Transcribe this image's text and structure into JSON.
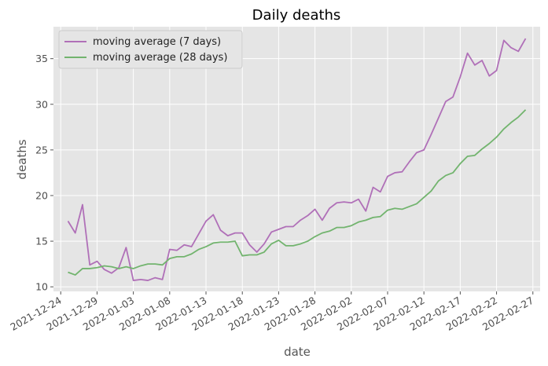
{
  "chart_data": {
    "type": "line",
    "title": "Daily deaths",
    "xlabel": "date",
    "ylabel": "deaths",
    "x_axis_type": "date",
    "xlim": [
      "2021-12-23",
      "2022-02-28"
    ],
    "ylim": [
      9.5,
      38.5
    ],
    "x_ticks": [
      "2021-12-24",
      "2021-12-29",
      "2022-01-03",
      "2022-01-08",
      "2022-01-13",
      "2022-01-18",
      "2022-01-23",
      "2022-01-28",
      "2022-02-02",
      "2022-02-07",
      "2022-02-12",
      "2022-02-17",
      "2022-02-22",
      "2022-02-27"
    ],
    "y_ticks": [
      10,
      15,
      20,
      25,
      30,
      35
    ],
    "grid": true,
    "legend_position": "top-left",
    "start_date": "2021-12-25",
    "series": [
      {
        "name": "moving average (7 days)",
        "color": "#b070b8",
        "values": [
          17.2,
          15.9,
          19.0,
          12.4,
          12.8,
          11.9,
          11.5,
          12.1,
          14.3,
          10.7,
          10.8,
          10.7,
          11.0,
          10.8,
          14.1,
          14.0,
          14.6,
          14.4,
          15.8,
          17.2,
          17.9,
          16.2,
          15.6,
          15.9,
          15.9,
          14.6,
          13.8,
          14.7,
          16.0,
          16.3,
          16.6,
          16.6,
          17.3,
          17.8,
          18.5,
          17.3,
          18.6,
          19.2,
          19.3,
          19.2,
          19.6,
          18.3,
          20.9,
          20.4,
          22.1,
          22.5,
          22.6,
          23.7,
          24.7,
          25.0,
          26.7,
          28.5,
          30.3,
          30.8,
          33.0,
          35.6,
          34.3,
          34.8,
          33.1,
          33.7,
          37.0,
          36.2,
          35.8,
          37.2
        ]
      },
      {
        "name": "moving average (28 days)",
        "color": "#72b46e",
        "values": [
          11.6,
          11.3,
          12.0,
          12.0,
          12.1,
          12.3,
          12.2,
          12.0,
          12.2,
          12.0,
          12.3,
          12.5,
          12.5,
          12.4,
          13.1,
          13.3,
          13.3,
          13.6,
          14.1,
          14.4,
          14.8,
          14.9,
          14.9,
          15.0,
          13.4,
          13.5,
          13.5,
          13.8,
          14.7,
          15.1,
          14.5,
          14.5,
          14.7,
          15.0,
          15.5,
          15.9,
          16.1,
          16.5,
          16.5,
          16.7,
          17.1,
          17.3,
          17.6,
          17.7,
          18.4,
          18.6,
          18.5,
          18.8,
          19.1,
          19.8,
          20.5,
          21.6,
          22.2,
          22.5,
          23.5,
          24.3,
          24.4,
          25.1,
          25.7,
          26.4,
          27.3,
          28.0,
          28.6,
          29.4
        ]
      }
    ]
  }
}
